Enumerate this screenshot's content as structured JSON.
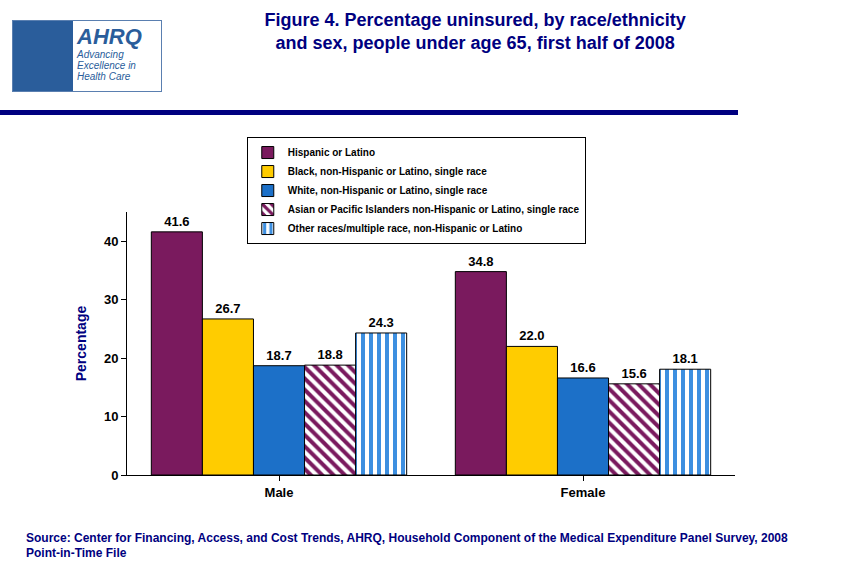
{
  "logo": {
    "name": "AHRQ",
    "tagline": "Advancing Excellence in Health Care"
  },
  "chart_data": {
    "type": "bar",
    "title": "Figure 4. Percentage uninsured, by race/ethnicity\nand sex, people under age 65, first half of 2008",
    "y_label": "Percentage",
    "source": "Source: Center for Financing, Access, and Cost Trends, AHRQ, Household Component of the Medical Expenditure Panel Survey, 2008 Point-in-Time File",
    "categories": [
      "Male",
      "Female"
    ],
    "series": [
      {
        "name": "Hispanic or Latino",
        "color": "#7a1a5e",
        "values": [
          41.6,
          34.8
        ],
        "value_labels": [
          "41.6",
          "34.8"
        ]
      },
      {
        "name": "Black, non-Hispanic or Latino, single race",
        "color": "#ffcc00",
        "values": [
          26.7,
          22.0
        ],
        "value_labels": [
          "26.7",
          "22.0"
        ]
      },
      {
        "name": "White, non-Hispanic or Latino, single race",
        "color": "#1c70c8",
        "values": [
          18.7,
          16.6
        ],
        "value_labels": [
          "18.7",
          "16.6"
        ]
      },
      {
        "name": "Asian or Pacific Islanders non-Hispanic or Latino, single race",
        "color": "#7a1a5e",
        "marker": "diagonal",
        "values": [
          18.8,
          15.6
        ],
        "value_labels": [
          "18.8",
          "15.6"
        ]
      },
      {
        "name": "Other races/multiple race, non-Hispanic or Latino",
        "color": "#3d8fe0",
        "marker": "vertical",
        "values": [
          24.3,
          18.1
        ],
        "value_labels": [
          "24.3",
          "18.1"
        ]
      }
    ],
    "ylim": [
      0,
      45
    ],
    "yticks": [
      0,
      10,
      20,
      30,
      40
    ],
    "grid": false,
    "legend": "top",
    "data_labels": true
  }
}
